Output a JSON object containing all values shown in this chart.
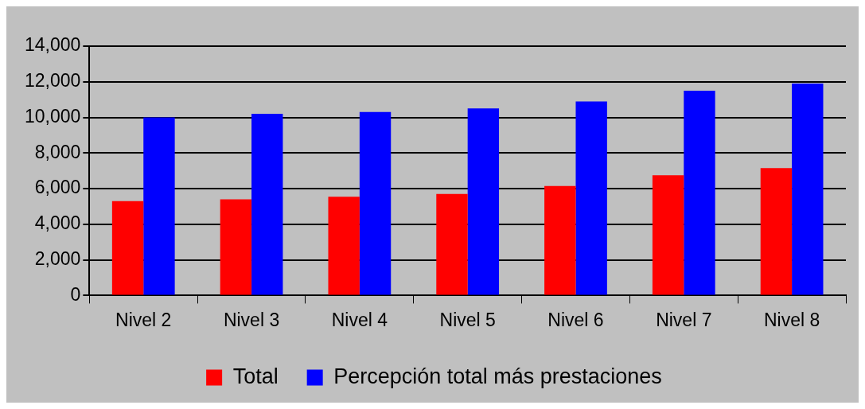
{
  "chart_data": {
    "type": "bar",
    "categories": [
      "Nivel 2",
      "Nivel 3",
      "Nivel 4",
      "Nivel 5",
      "Nivel 6",
      "Nivel 7",
      "Nivel 8"
    ],
    "series": [
      {
        "name": "Total",
        "color": "#ff0000",
        "values": [
          5300,
          5400,
          5550,
          5700,
          6150,
          6750,
          7150
        ]
      },
      {
        "name": "Percepción total más prestaciones",
        "color": "#0000ff",
        "values": [
          10000,
          10200,
          10300,
          10500,
          10900,
          11500,
          11900
        ]
      }
    ],
    "ylim": [
      0,
      14000
    ],
    "yticks": [
      0,
      {
        "value": 2000,
        "label": "2,000"
      },
      {
        "value": 4000,
        "label": "4,000"
      },
      {
        "value": 6000,
        "label": "6,000"
      },
      {
        "value": 8000,
        "label": "8,000"
      },
      {
        "value": 10000,
        "label": "10,000"
      },
      {
        "value": 12000,
        "label": "12,000"
      },
      {
        "value": 14000,
        "label": "14,000"
      }
    ],
    "grid": "y",
    "legend": "bottom"
  }
}
